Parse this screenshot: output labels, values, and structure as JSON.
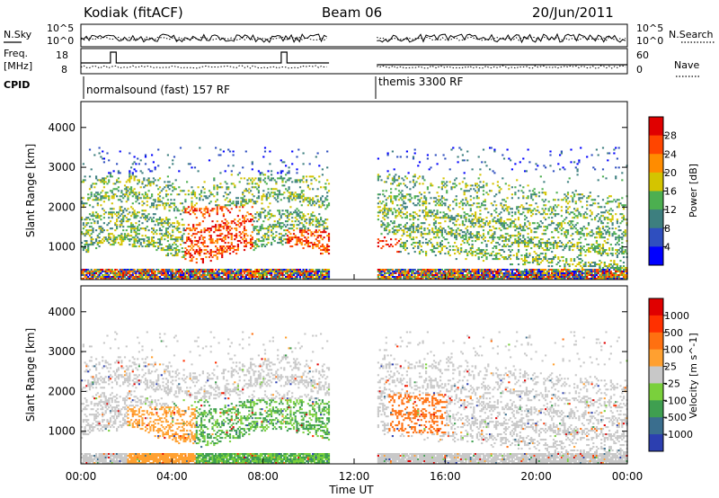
{
  "header": {
    "title": "Kodiak (fitACF)",
    "beam": "Beam 06",
    "date": "20/Jun/2011"
  },
  "panels": {
    "nsky": {
      "label": "N.Sky",
      "ticks": [
        "10^5",
        "10^0"
      ]
    },
    "nsearch": {
      "label": "N.Search",
      "ticks": [
        "10^5",
        "10^0"
      ]
    },
    "freq": {
      "label_line1": "Freq.",
      "label_line2": "[MHz]",
      "ticks": [
        "18",
        "8"
      ]
    },
    "nave": {
      "label": "Nave",
      "ticks": [
        "60",
        "0"
      ]
    },
    "cpid": {
      "label": "CPID",
      "mode1": "normalsound (fast) 157 RF",
      "mode2": "themis 3300 RF"
    }
  },
  "chart_data": [
    {
      "type": "heatmap",
      "quantity": "Power",
      "ylabel": "Slant Range [km]",
      "ylim": [
        180,
        4650
      ],
      "yticks": [
        "4000",
        "3000",
        "2000",
        "1000"
      ],
      "colorbar": {
        "label": "Power [dB]",
        "ticks": [
          "28",
          "24",
          "20",
          "16",
          "12",
          "8",
          "4"
        ],
        "colors": [
          "#0000ff",
          "#2f4fbf",
          "#3d7f7f",
          "#4caf50",
          "#d4c400",
          "#ff8c00",
          "#ff4500",
          "#e00000"
        ]
      },
      "data_gap_ut": [
        10.9,
        13.0
      ]
    },
    {
      "type": "heatmap",
      "quantity": "Velocity",
      "ylabel": "Slant Range [km]",
      "ylim": [
        180,
        4650
      ],
      "yticks": [
        "4000",
        "3000",
        "2000",
        "1000"
      ],
      "colorbar": {
        "label": "Velocity [m s^-1]",
        "ticks": [
          "1000",
          "500",
          "100",
          "25",
          "-25",
          "-100",
          "-500",
          "-1000"
        ],
        "colors": [
          "#2c3fb0",
          "#3a6e8e",
          "#3f9f50",
          "#7ad03c",
          "#c8c8c8",
          "#ffa030",
          "#ff7010",
          "#ff3000",
          "#e00000"
        ]
      },
      "data_gap_ut": [
        10.9,
        13.0
      ]
    }
  ],
  "time_axis": {
    "xlabel": "Time UT",
    "xlim": [
      0,
      24
    ],
    "ticks": [
      "00:00",
      "04:00",
      "08:00",
      "12:00",
      "16:00",
      "20:00",
      "00:00"
    ]
  }
}
